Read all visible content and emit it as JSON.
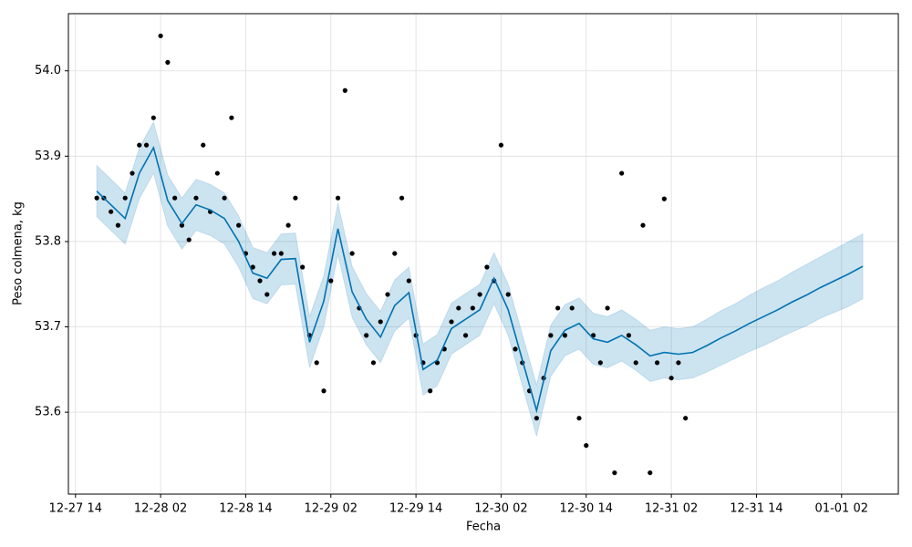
{
  "chart_data": {
    "type": "line",
    "xlabel": "Fecha",
    "ylabel": "Peso colmena, kg",
    "grid": true,
    "xlim": [
      "12-27 13",
      "01-01 10"
    ],
    "xticks": [
      "12-27 14",
      "12-28 02",
      "12-28 14",
      "12-29 02",
      "12-29 14",
      "12-30 02",
      "12-30 14",
      "12-31 02",
      "12-31 14",
      "01-01 02"
    ],
    "ylim": [
      53.504,
      54.067
    ],
    "yticks": [
      53.6,
      53.7,
      53.8,
      53.9,
      {
        "value": 54,
        "label": "54.0"
      }
    ],
    "observations": {
      "color": "#000000",
      "x": [
        "12-27 17",
        "12-27 18",
        "12-27 19",
        "12-27 20",
        "12-27 21",
        "12-27 22",
        "12-27 23",
        "12-28 00",
        "12-28 01",
        "12-28 02",
        "12-28 03",
        "12-28 04",
        "12-28 05",
        "12-28 06",
        "12-28 07",
        "12-28 08",
        "12-28 09",
        "12-28 10",
        "12-28 11",
        "12-28 12",
        "12-28 13",
        "12-28 14",
        "12-28 15",
        "12-28 16",
        "12-28 17",
        "12-28 18",
        "12-28 19",
        "12-28 20",
        "12-28 21",
        "12-28 22",
        "12-28 23",
        "12-29 00",
        "12-29 01",
        "12-29 02",
        "12-29 03",
        "12-29 04",
        "12-29 05",
        "12-29 06",
        "12-29 07",
        "12-29 08",
        "12-29 09",
        "12-29 10",
        "12-29 11",
        "12-29 12",
        "12-29 13",
        "12-29 14",
        "12-29 15",
        "12-29 16",
        "12-29 17",
        "12-29 18",
        "12-29 19",
        "12-29 20",
        "12-29 21",
        "12-29 22",
        "12-29 23",
        "12-30 00",
        "12-30 01",
        "12-30 02",
        "12-30 03",
        "12-30 04",
        "12-30 05",
        "12-30 06",
        "12-30 07",
        "12-30 08",
        "12-30 09",
        "12-30 10",
        "12-30 11",
        "12-30 12",
        "12-30 13",
        "12-30 14",
        "12-30 15",
        "12-30 16",
        "12-30 17",
        "12-30 18",
        "12-30 19",
        "12-30 20",
        "12-30 21",
        "12-30 22",
        "12-30 23",
        "12-31 00",
        "12-31 01",
        "12-31 02",
        "12-31 03",
        "12-31 04"
      ],
      "values": [
        53.851,
        53.851,
        53.835,
        53.819,
        53.851,
        53.88,
        53.913,
        53.913,
        53.945,
        54.041,
        54.01,
        53.851,
        53.819,
        53.802,
        53.851,
        53.913,
        53.835,
        53.88,
        53.851,
        53.945,
        53.819,
        53.786,
        53.77,
        53.754,
        53.738,
        53.786,
        53.786,
        53.819,
        53.851,
        53.77,
        53.69,
        53.658,
        53.625,
        53.754,
        53.851,
        53.977,
        53.786,
        53.722,
        53.69,
        53.658,
        53.706,
        53.738,
        53.786,
        53.851,
        53.754,
        53.69,
        53.658,
        53.625,
        53.658,
        53.674,
        53.706,
        53.722,
        53.69,
        53.722,
        53.738,
        53.77,
        53.754,
        53.913,
        53.738,
        53.674,
        53.658,
        53.625,
        53.593,
        53.64,
        53.69,
        53.722,
        53.69,
        53.722,
        53.593,
        53.561,
        53.69,
        53.658,
        53.722,
        53.529,
        53.88,
        53.69,
        53.658,
        53.819,
        53.529,
        53.658,
        53.85,
        53.64,
        53.658,
        53.593
      ]
    },
    "forecast": {
      "color": "#0072B2",
      "band_color": "#0072B2",
      "x": [
        "12-27 17",
        "12-27 19",
        "12-27 21",
        "12-27 23",
        "12-28 01",
        "12-28 03",
        "12-28 05",
        "12-28 07",
        "12-28 09",
        "12-28 11",
        "12-28 13",
        "12-28 15",
        "12-28 17",
        "12-28 19",
        "12-28 21",
        "12-28 23",
        "12-29 01",
        "12-29 03",
        "12-29 05",
        "12-29 07",
        "12-29 09",
        "12-29 11",
        "12-29 13",
        "12-29 15",
        "12-29 17",
        "12-29 19",
        "12-29 21",
        "12-29 23",
        "12-30 01",
        "12-30 03",
        "12-30 05",
        "12-30 07",
        "12-30 09",
        "12-30 11",
        "12-30 13",
        "12-30 15",
        "12-30 17",
        "12-30 19",
        "12-30 21",
        "12-30 23",
        "12-31 01",
        "12-31 03",
        "12-31 05",
        "12-31 07",
        "12-31 09",
        "12-31 11",
        "12-31 13",
        "12-31 15",
        "12-31 17",
        "12-31 19",
        "12-31 21",
        "12-31 23",
        "01-01 01",
        "01-01 03",
        "01-01 05"
      ],
      "values": [
        53.859,
        53.843,
        53.827,
        53.88,
        53.91,
        53.848,
        53.821,
        53.843,
        53.837,
        53.827,
        53.8,
        53.763,
        53.757,
        53.779,
        53.78,
        53.682,
        53.73,
        53.815,
        53.741,
        53.709,
        53.688,
        53.725,
        53.74,
        53.65,
        53.661,
        53.698,
        53.709,
        53.72,
        53.757,
        53.72,
        53.661,
        53.602,
        53.672,
        53.696,
        53.704,
        53.686,
        53.682,
        53.69,
        53.679,
        53.666,
        53.67,
        53.668,
        53.67,
        53.678,
        53.687,
        53.695,
        53.704,
        53.712,
        53.72,
        53.729,
        53.737,
        53.746,
        53.754,
        53.762,
        53.771
      ],
      "lower": [
        53.829,
        53.813,
        53.797,
        53.85,
        53.88,
        53.818,
        53.791,
        53.813,
        53.807,
        53.797,
        53.77,
        53.733,
        53.727,
        53.749,
        53.75,
        53.652,
        53.7,
        53.785,
        53.711,
        53.679,
        53.658,
        53.695,
        53.71,
        53.62,
        53.631,
        53.668,
        53.679,
        53.69,
        53.727,
        53.69,
        53.631,
        53.572,
        53.642,
        53.666,
        53.674,
        53.656,
        53.652,
        53.66,
        53.649,
        53.636,
        53.64,
        53.638,
        53.64,
        53.647,
        53.655,
        53.663,
        53.671,
        53.678,
        53.686,
        53.694,
        53.701,
        53.71,
        53.717,
        53.724,
        53.733
      ],
      "upper": [
        53.889,
        53.873,
        53.857,
        53.91,
        53.94,
        53.878,
        53.851,
        53.873,
        53.867,
        53.857,
        53.83,
        53.793,
        53.787,
        53.809,
        53.81,
        53.712,
        53.76,
        53.845,
        53.771,
        53.739,
        53.718,
        53.755,
        53.77,
        53.68,
        53.691,
        53.728,
        53.739,
        53.75,
        53.787,
        53.75,
        53.691,
        53.632,
        53.702,
        53.726,
        53.734,
        53.716,
        53.712,
        53.72,
        53.709,
        53.696,
        53.7,
        53.698,
        53.7,
        53.709,
        53.719,
        53.727,
        53.737,
        53.746,
        53.754,
        53.764,
        53.773,
        53.782,
        53.791,
        53.8,
        53.809
      ]
    }
  }
}
